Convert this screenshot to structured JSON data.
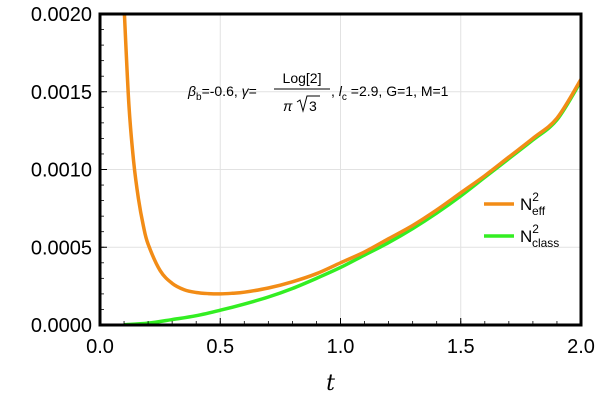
{
  "chart_data": {
    "type": "line",
    "xlabel": "t",
    "xlim": [
      0.0,
      2.0
    ],
    "ylim": [
      0.0,
      0.002
    ],
    "grid": true,
    "legend_position": "right",
    "x_ticks": [
      "0.0",
      "0.5",
      "1.0",
      "1.5",
      "2.0"
    ],
    "y_ticks": [
      "0.0000",
      "0.0005",
      "0.0010",
      "0.0015",
      "0.0020"
    ],
    "annotation": {
      "beta_sym": "β",
      "beta_sub": "b",
      "beta_val": "=-0.6, ",
      "gamma_sym": "γ",
      "gamma_eq": "=",
      "frac_num": "Log[2]",
      "frac_den_pi": "π",
      "frac_den_sqrt": "3",
      "lc_sep": ", ",
      "lc_sym": "l",
      "lc_sub": "c",
      "rest": " =2.9, G=1, M=1"
    },
    "series": [
      {
        "name_base": "N",
        "name_sup": "2",
        "name_sub": "eff",
        "color": "#F28C16",
        "x": [
          0.1,
          0.12,
          0.14,
          0.16,
          0.18,
          0.2,
          0.25,
          0.3,
          0.35,
          0.4,
          0.45,
          0.5,
          0.55,
          0.6,
          0.7,
          0.8,
          0.9,
          1.0,
          1.1,
          1.2,
          1.3,
          1.4,
          1.5,
          1.6,
          1.7,
          1.8,
          1.9,
          2.0
        ],
        "y": [
          0.00205,
          0.00142,
          0.00105,
          0.00081,
          0.00064,
          0.00052,
          0.00035,
          0.000268,
          0.000227,
          0.000209,
          0.000202,
          0.0002,
          0.000204,
          0.000211,
          0.000238,
          0.000278,
          0.00033,
          0.0004,
          0.00047,
          0.000555,
          0.00064,
          0.00074,
          0.00085,
          0.00096,
          0.00108,
          0.0012,
          0.00133,
          0.00158
        ]
      },
      {
        "name_base": "N",
        "name_sup": "2",
        "name_sub": "class",
        "color": "#33EE22",
        "x": [
          0.1,
          0.2,
          0.3,
          0.4,
          0.5,
          0.6,
          0.7,
          0.8,
          0.9,
          1.0,
          1.1,
          1.2,
          1.3,
          1.4,
          1.5,
          1.6,
          1.7,
          1.8,
          1.9,
          2.0
        ],
        "y": [
          2e-06,
          1.2e-05,
          3.5e-05,
          6e-05,
          9.5e-05,
          0.000135,
          0.00018,
          0.000235,
          0.0003,
          0.00037,
          0.00045,
          0.00053,
          0.00062,
          0.00072,
          0.00083,
          0.00095,
          0.00107,
          0.00119,
          0.00132,
          0.00157
        ]
      }
    ]
  }
}
